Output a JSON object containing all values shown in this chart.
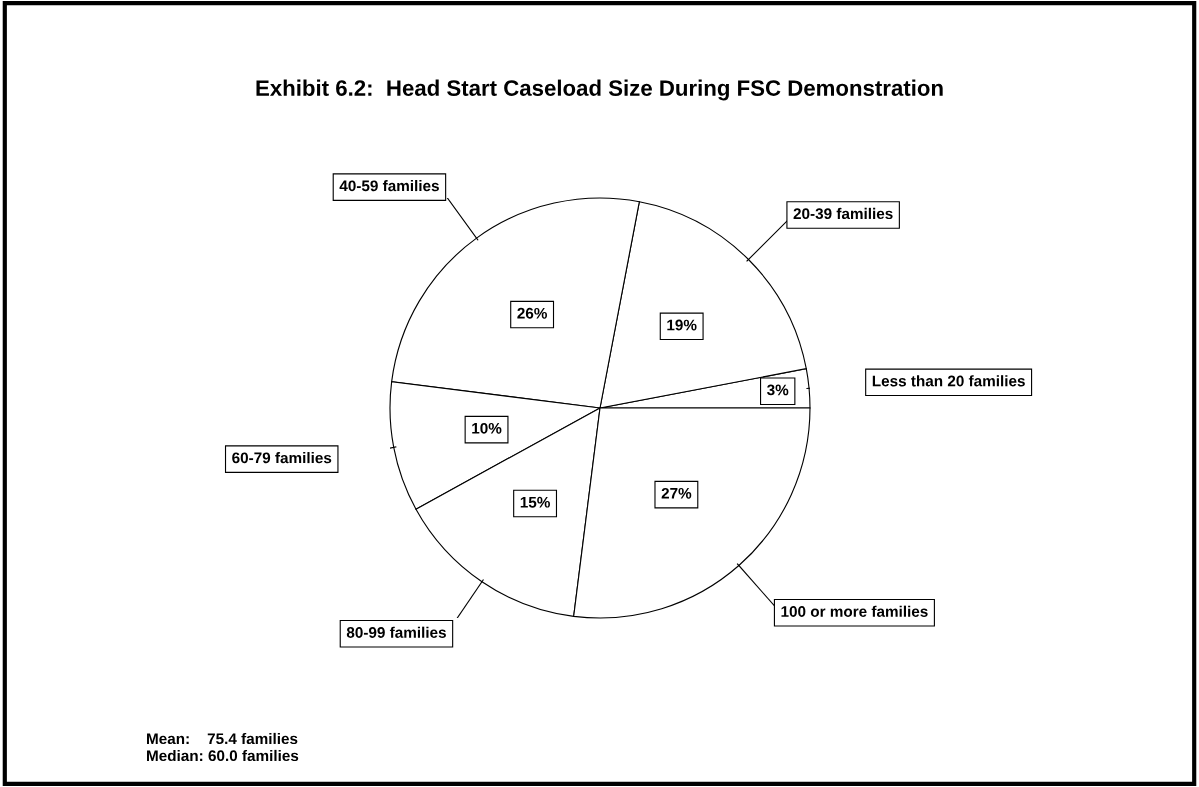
{
  "chart_data": {
    "type": "pie",
    "title": "Exhibit 6.2:  Head Start Caseload Size During FSC Demonstration",
    "categories": [
      "Less than 20 families",
      "20-39 families",
      "40-59 families",
      "60-79 families",
      "80-99 families",
      "100 or more families"
    ],
    "values": [
      3,
      19,
      26,
      10,
      15,
      27
    ],
    "value_labels": [
      "3%",
      "19%",
      "26%",
      "10%",
      "15%",
      "27%"
    ],
    "colors": [
      "#ffffff",
      "#ffffff",
      "#ffffff",
      "#ffffff",
      "#ffffff",
      "#ffffff"
    ],
    "annotations": [
      "Mean:    75.4 families",
      "Median: 60.0 families"
    ],
    "legend": false
  }
}
